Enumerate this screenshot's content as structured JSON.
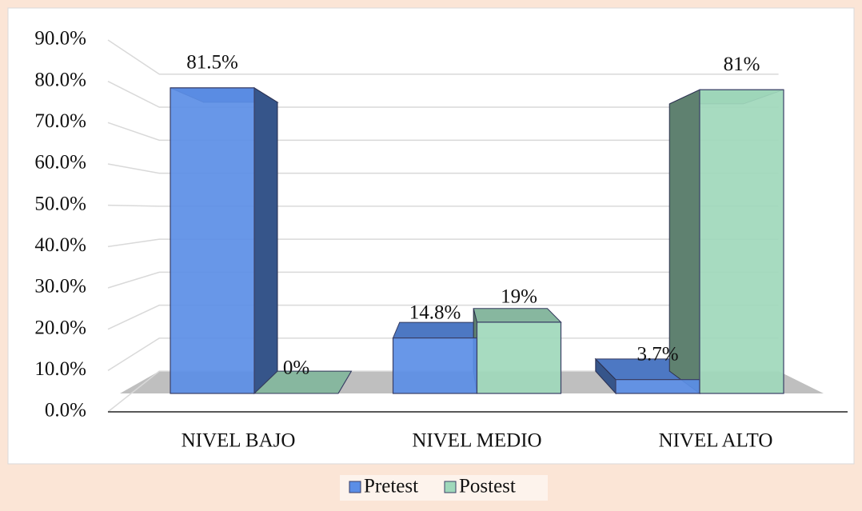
{
  "chart_data": {
    "type": "bar3d",
    "categories": [
      "NIVEL BAJO",
      "NIVEL MEDIO",
      "NIVEL ALTO"
    ],
    "series": [
      {
        "name": "Pretest",
        "color": "#5b8ee6",
        "values": [
          81.5,
          14.8,
          3.7
        ],
        "value_labels": [
          "81.5%",
          "14.8%",
          "3.7%"
        ]
      },
      {
        "name": "Postest",
        "color": "#9fd8bb",
        "values": [
          0,
          19,
          81
        ],
        "value_labels": [
          "0%",
          "19%",
          "81%"
        ]
      }
    ],
    "ylim": [
      0,
      90
    ],
    "yticks": [
      {
        "value": 0,
        "label": "0.0%"
      },
      {
        "value": 10,
        "label": "10.0%"
      },
      {
        "value": 20,
        "label": "20.0%"
      },
      {
        "value": 30,
        "label": "30.0%"
      },
      {
        "value": 40,
        "label": "40.0%"
      },
      {
        "value": 50,
        "label": "50.0%"
      },
      {
        "value": 60,
        "label": "60.0%"
      },
      {
        "value": 70,
        "label": "70.0%"
      },
      {
        "value": 80,
        "label": "80.0%"
      },
      {
        "value": 90,
        "label": "90.0%"
      }
    ],
    "grid": true,
    "legend": "bottom"
  }
}
